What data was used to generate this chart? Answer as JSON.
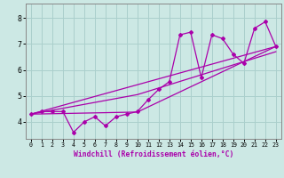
{
  "xlabel": "Windchill (Refroidissement éolien,°C)",
  "background_color": "#cce8e4",
  "grid_color": "#aacfcc",
  "line_color": "#aa00aa",
  "spine_color": "#888888",
  "xlim": [
    -0.5,
    23.5
  ],
  "ylim": [
    3.35,
    8.55
  ],
  "xticks": [
    0,
    1,
    2,
    3,
    4,
    5,
    6,
    7,
    8,
    9,
    10,
    11,
    12,
    13,
    14,
    15,
    16,
    17,
    18,
    19,
    20,
    21,
    22,
    23
  ],
  "yticks": [
    4,
    5,
    6,
    7,
    8
  ],
  "main_x": [
    0,
    1,
    2,
    3,
    4,
    5,
    6,
    7,
    8,
    9,
    10,
    11,
    12,
    13,
    14,
    15,
    16,
    17,
    18,
    19,
    20,
    21,
    22,
    23
  ],
  "main_y": [
    4.3,
    4.4,
    4.4,
    4.4,
    3.6,
    4.0,
    4.2,
    3.85,
    4.2,
    4.3,
    4.4,
    4.85,
    5.25,
    5.55,
    7.35,
    7.45,
    5.7,
    7.35,
    7.2,
    6.6,
    6.25,
    7.6,
    7.85,
    6.9
  ],
  "trend1_x": [
    0,
    23
  ],
  "trend1_y": [
    4.3,
    6.9
  ],
  "trend2_x": [
    0,
    10,
    23
  ],
  "trend2_y": [
    4.3,
    4.38,
    6.9
  ],
  "trend3_x": [
    0,
    10,
    23
  ],
  "trend3_y": [
    4.3,
    5.05,
    6.7
  ]
}
